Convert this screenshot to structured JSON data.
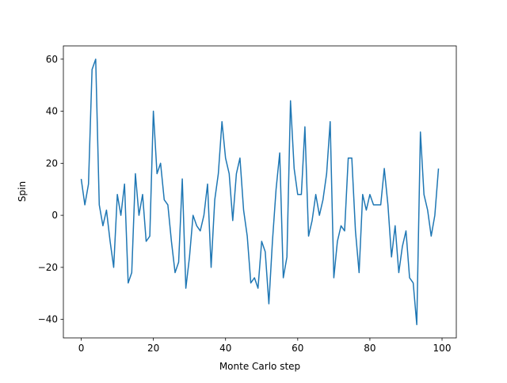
{
  "chart_data": {
    "type": "line",
    "title": "",
    "xlabel": "Monte Carlo step",
    "ylabel": "Spin",
    "xlim": [
      -4.95,
      103.95
    ],
    "ylim": [
      -47.1,
      65.1
    ],
    "xticks": [
      0,
      20,
      40,
      60,
      80,
      100
    ],
    "yticks": [
      -40,
      -20,
      0,
      20,
      40,
      60
    ],
    "xtick_labels": [
      "0",
      "20",
      "40",
      "60",
      "80",
      "100"
    ],
    "ytick_labels": [
      "−40",
      "−20",
      "0",
      "20",
      "40",
      "60"
    ],
    "grid": false,
    "line_color": "#1f77b4",
    "series": [
      {
        "name": "spin",
        "values": [
          14,
          4,
          12,
          56,
          60,
          4,
          -4,
          2,
          -10,
          -20,
          8,
          0,
          12,
          -26,
          -22,
          16,
          0,
          8,
          -10,
          -8,
          40,
          16,
          20,
          6,
          4,
          -10,
          -22,
          -18,
          14,
          -28,
          -16,
          0,
          -4,
          -6,
          0,
          12,
          -20,
          6,
          16,
          36,
          22,
          16,
          -2,
          16,
          22,
          2,
          -8,
          -26,
          -24,
          -28,
          -10,
          -14,
          -34,
          -10,
          10,
          24,
          -24,
          -16,
          44,
          18,
          8,
          8,
          34,
          -8,
          -2,
          8,
          0,
          6,
          16,
          36,
          -24,
          -10,
          -4,
          -6,
          22,
          22,
          -6,
          -22,
          8,
          2,
          8,
          4,
          4,
          4,
          18,
          4,
          -16,
          -4,
          -22,
          -12,
          -6,
          -24,
          -26,
          -42,
          32,
          8,
          2,
          -8,
          0,
          18
        ]
      }
    ]
  }
}
